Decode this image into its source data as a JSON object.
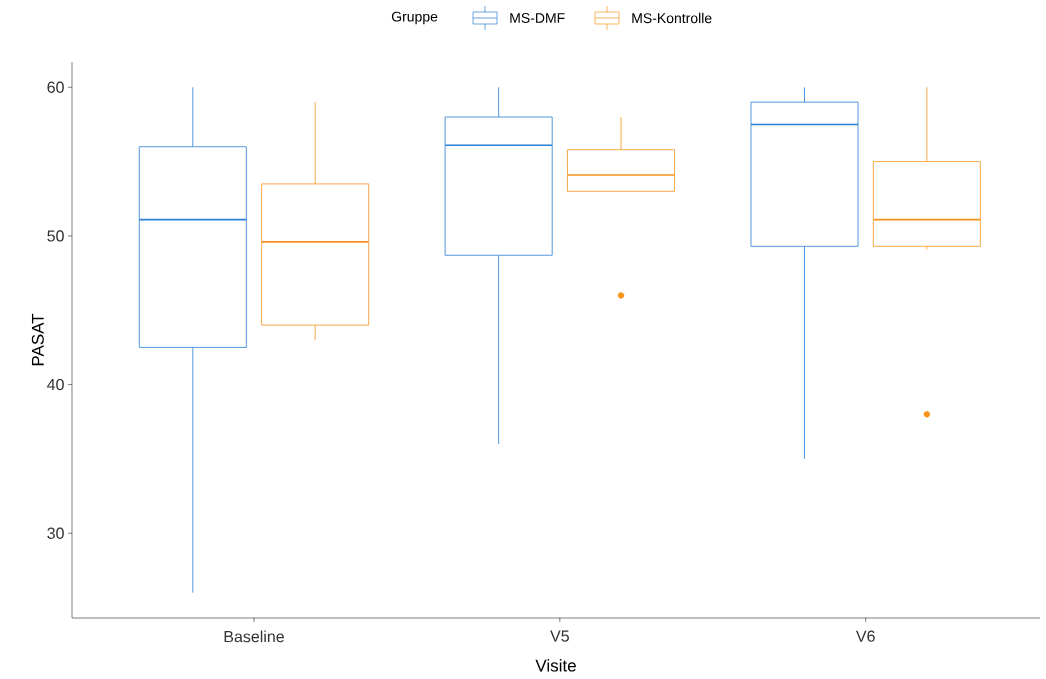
{
  "chart_data": {
    "type": "box",
    "xlabel": "Visite",
    "ylabel": "PASAT",
    "legend_title": "Gruppe",
    "legend": "top",
    "grid": false,
    "categories": [
      "Baseline",
      "V5",
      "V6"
    ],
    "ylim": [
      24.3,
      61.7
    ],
    "yticks": [
      30,
      40,
      50,
      60
    ],
    "series": [
      {
        "name": "MS-DMF",
        "color": "#2a7fd4",
        "boxes": [
          {
            "low": 26,
            "q1": 42.5,
            "median": 51.1,
            "q3": 56,
            "high": 60
          },
          {
            "low": 36,
            "q1": 48.7,
            "median": 56.1,
            "q3": 58,
            "high": 60
          },
          {
            "low": 35,
            "q1": 49.3,
            "median": 57.5,
            "q3": 59,
            "high": 60
          }
        ]
      },
      {
        "name": "MS-Kontrolle",
        "color": "#f7931e",
        "boxes": [
          {
            "low": 43,
            "q1": 44,
            "median": 49.6,
            "q3": 53.5,
            "high": 59
          },
          {
            "low": 53,
            "q1": 53,
            "median": 54.1,
            "q3": 55.8,
            "high": 58,
            "outliers": [
              46
            ]
          },
          {
            "low": 49.1,
            "q1": 49.3,
            "median": 51.1,
            "q3": 55,
            "high": 60,
            "outliers": [
              38
            ]
          }
        ]
      }
    ]
  }
}
